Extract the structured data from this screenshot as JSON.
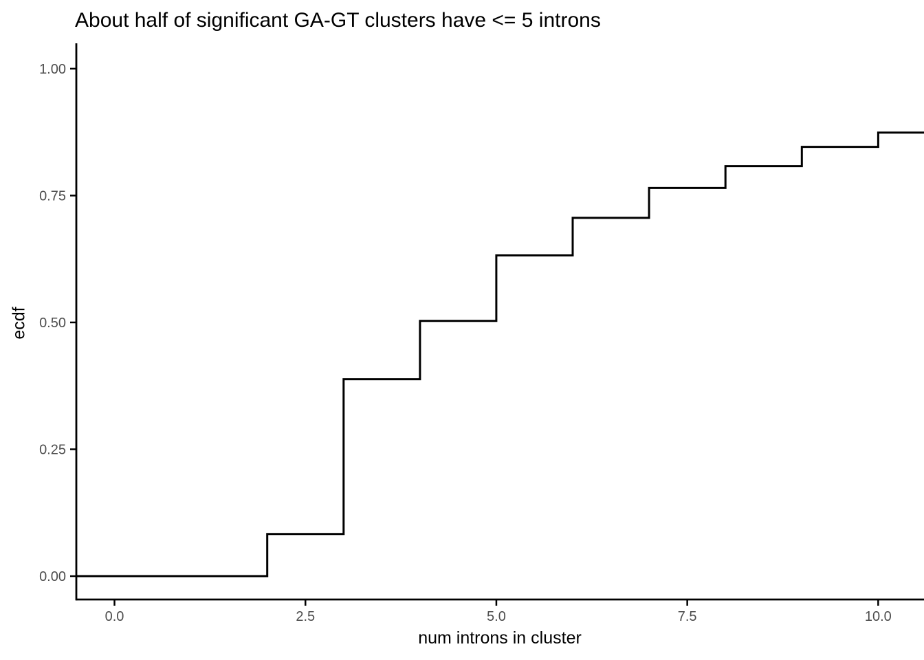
{
  "chart_data": {
    "type": "line",
    "subtype": "ecdf-step",
    "title": "About half of significant GA-GT clusters have <= 5 introns",
    "xlabel": "num introns in cluster",
    "ylabel": "ecdf",
    "x_ticks": {
      "values": [
        0,
        2.5,
        5,
        7.5,
        10
      ],
      "labels": [
        "0.0",
        "2.5",
        "5.0",
        "7.5",
        "10.0"
      ]
    },
    "y_ticks": {
      "values": [
        0,
        0.25,
        0.5,
        0.75,
        1
      ],
      "labels": [
        "0.00",
        "0.25",
        "0.50",
        "0.75",
        "1.00"
      ]
    },
    "xlim": [
      -0.5,
      10.6
    ],
    "ylim": [
      -0.046,
      1.05
    ],
    "grid": false,
    "legend": false,
    "line_color": "#000000",
    "axis_color": "#000000",
    "tick_label_color": "#4D4D4D",
    "start_x": -0.5,
    "start_value": 0,
    "end_x": 10.6,
    "ecdf_points": [
      {
        "x": 2,
        "ecdf": 0.083
      },
      {
        "x": 3,
        "ecdf": 0.388
      },
      {
        "x": 4,
        "ecdf": 0.503
      },
      {
        "x": 5,
        "ecdf": 0.632
      },
      {
        "x": 6,
        "ecdf": 0.706
      },
      {
        "x": 7,
        "ecdf": 0.765
      },
      {
        "x": 8,
        "ecdf": 0.808
      },
      {
        "x": 9,
        "ecdf": 0.846
      },
      {
        "x": 10,
        "ecdf": 0.874
      }
    ]
  }
}
